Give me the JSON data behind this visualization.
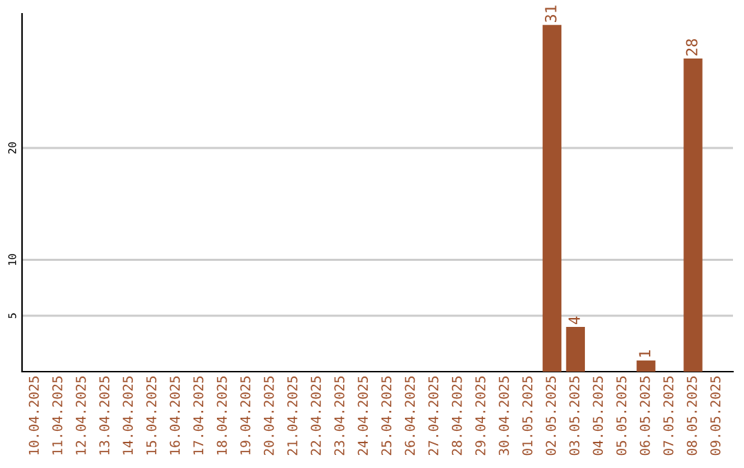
{
  "chart_data": {
    "type": "bar",
    "categories": [
      "10.04.2025",
      "11.04.2025",
      "12.04.2025",
      "13.04.2025",
      "14.04.2025",
      "15.04.2025",
      "16.04.2025",
      "17.04.2025",
      "18.04.2025",
      "19.04.2025",
      "20.04.2025",
      "21.04.2025",
      "22.04.2025",
      "23.04.2025",
      "24.04.2025",
      "25.04.2025",
      "26.04.2025",
      "27.04.2025",
      "28.04.2025",
      "29.04.2025",
      "30.04.2025",
      "01.05.2025",
      "02.05.2025",
      "03.05.2025",
      "04.05.2025",
      "05.05.2025",
      "06.05.2025",
      "07.05.2025",
      "08.05.2025",
      "09.05.2025"
    ],
    "values": [
      0,
      0,
      0,
      0,
      0,
      0,
      0,
      0,
      0,
      0,
      0,
      0,
      0,
      0,
      0,
      0,
      0,
      0,
      0,
      0,
      0,
      0,
      31,
      4,
      0,
      0,
      1,
      0,
      28,
      0
    ],
    "value_labels": [
      null,
      null,
      null,
      null,
      null,
      null,
      null,
      null,
      null,
      null,
      null,
      null,
      null,
      null,
      null,
      null,
      null,
      null,
      null,
      null,
      null,
      null,
      "31",
      "4",
      null,
      null,
      "1",
      null,
      "28",
      null
    ],
    "color": "#a0522d",
    "ylim": [
      0,
      32
    ],
    "yticks": [
      5,
      10,
      20
    ],
    "grid": "y"
  }
}
